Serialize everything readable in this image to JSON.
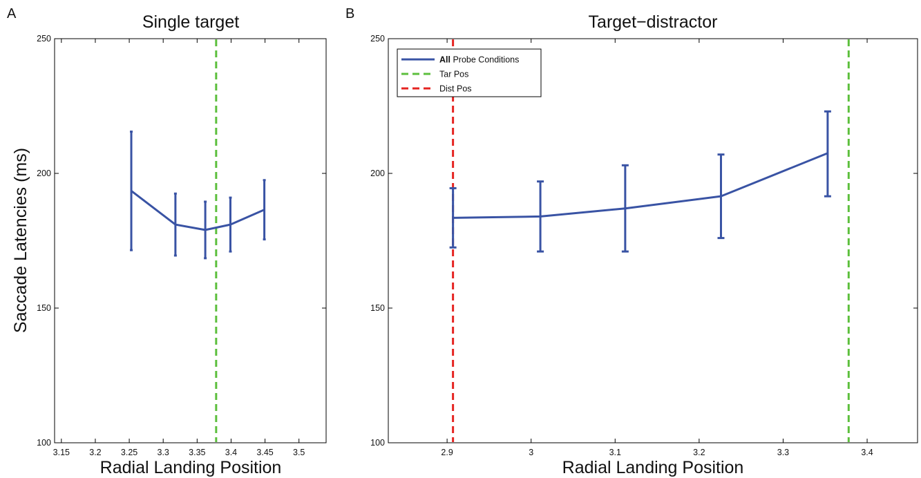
{
  "chart_data": [
    {
      "type": "line",
      "panel_letter": "A",
      "title": "Single target",
      "xlabel": "Radial Landing Position",
      "ylabel": "Saccade Latencies (ms)",
      "xlim": [
        3.14,
        3.54
      ],
      "ylim": [
        100,
        250
      ],
      "xticks": [
        3.15,
        3.2,
        3.25,
        3.3,
        3.35,
        3.4,
        3.45,
        3.5
      ],
      "xtick_labels": [
        "3.15",
        "3.2",
        "3.25",
        "3.3",
        "3.35",
        "3.4",
        "3.45",
        "3.5"
      ],
      "yticks": [
        100,
        150,
        200,
        250
      ],
      "ytick_labels": [
        "100",
        "150",
        "200",
        "250"
      ],
      "series": [
        {
          "color": "#3953a4",
          "points": [
            {
              "x": 3.253,
              "y": 193.5,
              "lo": 171.5,
              "hi": 215.5
            },
            {
              "x": 3.318,
              "y": 181.0,
              "lo": 169.5,
              "hi": 192.5
            },
            {
              "x": 3.362,
              "y": 179.0,
              "lo": 168.5,
              "hi": 189.5
            },
            {
              "x": 3.399,
              "y": 181.0,
              "lo": 171.0,
              "hi": 191.0
            },
            {
              "x": 3.449,
              "y": 186.5,
              "lo": 175.5,
              "hi": 197.5
            }
          ]
        }
      ],
      "vlines": [
        {
          "x": 3.378,
          "color": "#5cbf3c"
        }
      ]
    },
    {
      "type": "line",
      "panel_letter": "B",
      "title": "Target−distractor",
      "xlabel": "Radial Landing Position",
      "ylabel": "",
      "xlim": [
        2.83,
        3.46
      ],
      "ylim": [
        100,
        250
      ],
      "xticks": [
        2.9,
        3.0,
        3.1,
        3.2,
        3.3,
        3.4
      ],
      "xtick_labels": [
        "2.9",
        "3",
        "3.1",
        "3.2",
        "3.3",
        "3.4"
      ],
      "yticks": [
        100,
        150,
        200,
        250
      ],
      "ytick_labels": [
        "100",
        "150",
        "200",
        "250"
      ],
      "series": [
        {
          "name": "All Probe Conditions",
          "color": "#3953a4",
          "points": [
            {
              "x": 2.907,
              "y": 183.5,
              "lo": 172.5,
              "hi": 194.5
            },
            {
              "x": 3.011,
              "y": 184.0,
              "lo": 171.0,
              "hi": 197.0
            },
            {
              "x": 3.112,
              "y": 187.0,
              "lo": 171.0,
              "hi": 203.0
            },
            {
              "x": 3.226,
              "y": 191.5,
              "lo": 176.0,
              "hi": 207.0
            },
            {
              "x": 3.353,
              "y": 207.5,
              "lo": 191.5,
              "hi": 223.0
            }
          ]
        }
      ],
      "vlines": [
        {
          "name": "Tar Pos",
          "x": 3.378,
          "color": "#5cbf3c"
        },
        {
          "name": "Dist Pos",
          "x": 2.907,
          "color": "#e52421"
        }
      ],
      "legend": {
        "location": "top-left",
        "entries": [
          {
            "label_bold": "All",
            "label_rest": " Probe Conditions",
            "style": "solid",
            "color": "#3953a4"
          },
          {
            "label_bold": "",
            "label_rest": "Tar Pos",
            "style": "dashed",
            "color": "#5cbf3c"
          },
          {
            "label_bold": "",
            "label_rest": "Dist Pos",
            "style": "dashed",
            "color": "#e52421"
          }
        ]
      }
    }
  ]
}
